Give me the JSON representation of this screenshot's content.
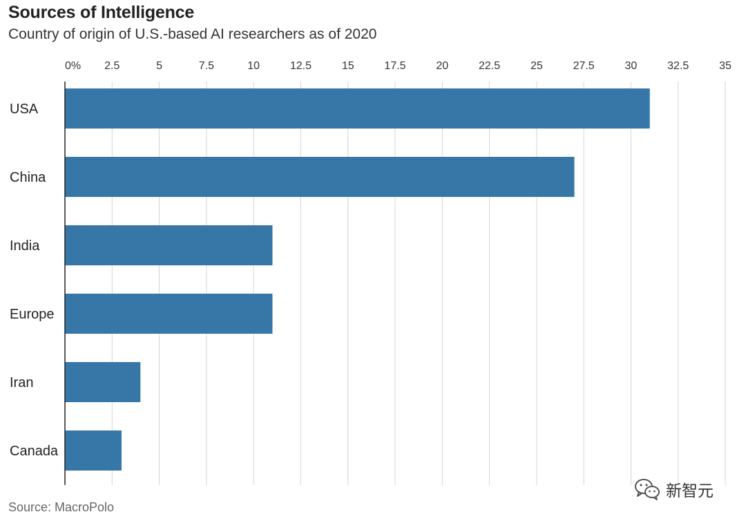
{
  "chart_data": {
    "type": "bar",
    "orientation": "horizontal",
    "title": "Sources of Intelligence",
    "subtitle": "Country of origin of U.S.-based AI researchers as of 2020",
    "source": "Source: MacroPolo",
    "categories": [
      "USA",
      "China",
      "India",
      "Europe",
      "Iran",
      "Canada"
    ],
    "values": [
      31,
      27,
      11,
      11,
      4,
      3
    ],
    "xlim": [
      0,
      35
    ],
    "xticks": [
      0,
      2.5,
      5,
      7.5,
      10,
      12.5,
      15,
      17.5,
      20,
      22.5,
      25,
      27.5,
      30,
      32.5,
      35
    ],
    "xtick_labels": [
      "0%",
      "2.5",
      "5",
      "7.5",
      "10",
      "12.5",
      "15",
      "17.5",
      "20",
      "22.5",
      "25",
      "27.5",
      "30",
      "32.5",
      "35"
    ],
    "xaxis_position": "top",
    "grid": true,
    "bar_color": "#3677a8",
    "grid_color": "#d4d4d4"
  },
  "watermark": {
    "icon": "wechat-icon",
    "text": "新智元"
  }
}
